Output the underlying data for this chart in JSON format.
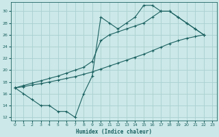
{
  "xlabel": "Humidex (Indice chaleur)",
  "bg_color": "#cce8e8",
  "grid_color": "#aad0d0",
  "line_color": "#1a6060",
  "xlim": [
    -0.5,
    23.5
  ],
  "ylim": [
    11.5,
    31.5
  ],
  "xticks": [
    0,
    1,
    2,
    3,
    4,
    5,
    6,
    7,
    8,
    9,
    10,
    11,
    12,
    13,
    14,
    15,
    16,
    17,
    18,
    19,
    20,
    21,
    22,
    23
  ],
  "yticks": [
    12,
    14,
    16,
    18,
    20,
    22,
    24,
    26,
    28,
    30
  ],
  "line1_x": [
    0,
    1,
    2,
    3,
    4,
    5,
    6,
    7,
    8,
    9,
    10,
    11,
    12,
    13,
    14,
    15,
    16,
    17,
    18,
    19,
    20,
    21,
    22
  ],
  "line1_y": [
    17,
    16,
    15,
    14,
    14,
    13,
    13,
    12,
    16,
    19,
    29,
    28,
    27,
    28,
    29,
    31,
    31,
    30,
    30,
    29,
    28,
    27,
    26
  ],
  "line2_x": [
    0,
    1,
    2,
    3,
    4,
    5,
    6,
    7,
    8,
    9,
    10,
    11,
    12,
    13,
    14,
    15,
    16,
    17,
    18,
    19,
    20,
    21,
    22
  ],
  "line2_y": [
    17,
    17.4,
    17.8,
    18.2,
    18.6,
    19.0,
    19.5,
    20.0,
    20.5,
    21.5,
    25,
    26,
    26.5,
    27,
    27.5,
    28,
    29,
    30,
    30,
    29,
    28,
    27,
    26
  ],
  "line3_x": [
    0,
    1,
    2,
    3,
    4,
    5,
    6,
    7,
    8,
    9,
    10,
    11,
    12,
    13,
    14,
    15,
    16,
    17,
    18,
    19,
    20,
    21,
    22
  ],
  "line3_y": [
    17,
    17.2,
    17.5,
    17.7,
    18.0,
    18.3,
    18.6,
    18.9,
    19.3,
    19.7,
    20.2,
    20.7,
    21.2,
    21.7,
    22.2,
    22.7,
    23.3,
    23.9,
    24.5,
    25.0,
    25.4,
    25.7,
    26
  ]
}
